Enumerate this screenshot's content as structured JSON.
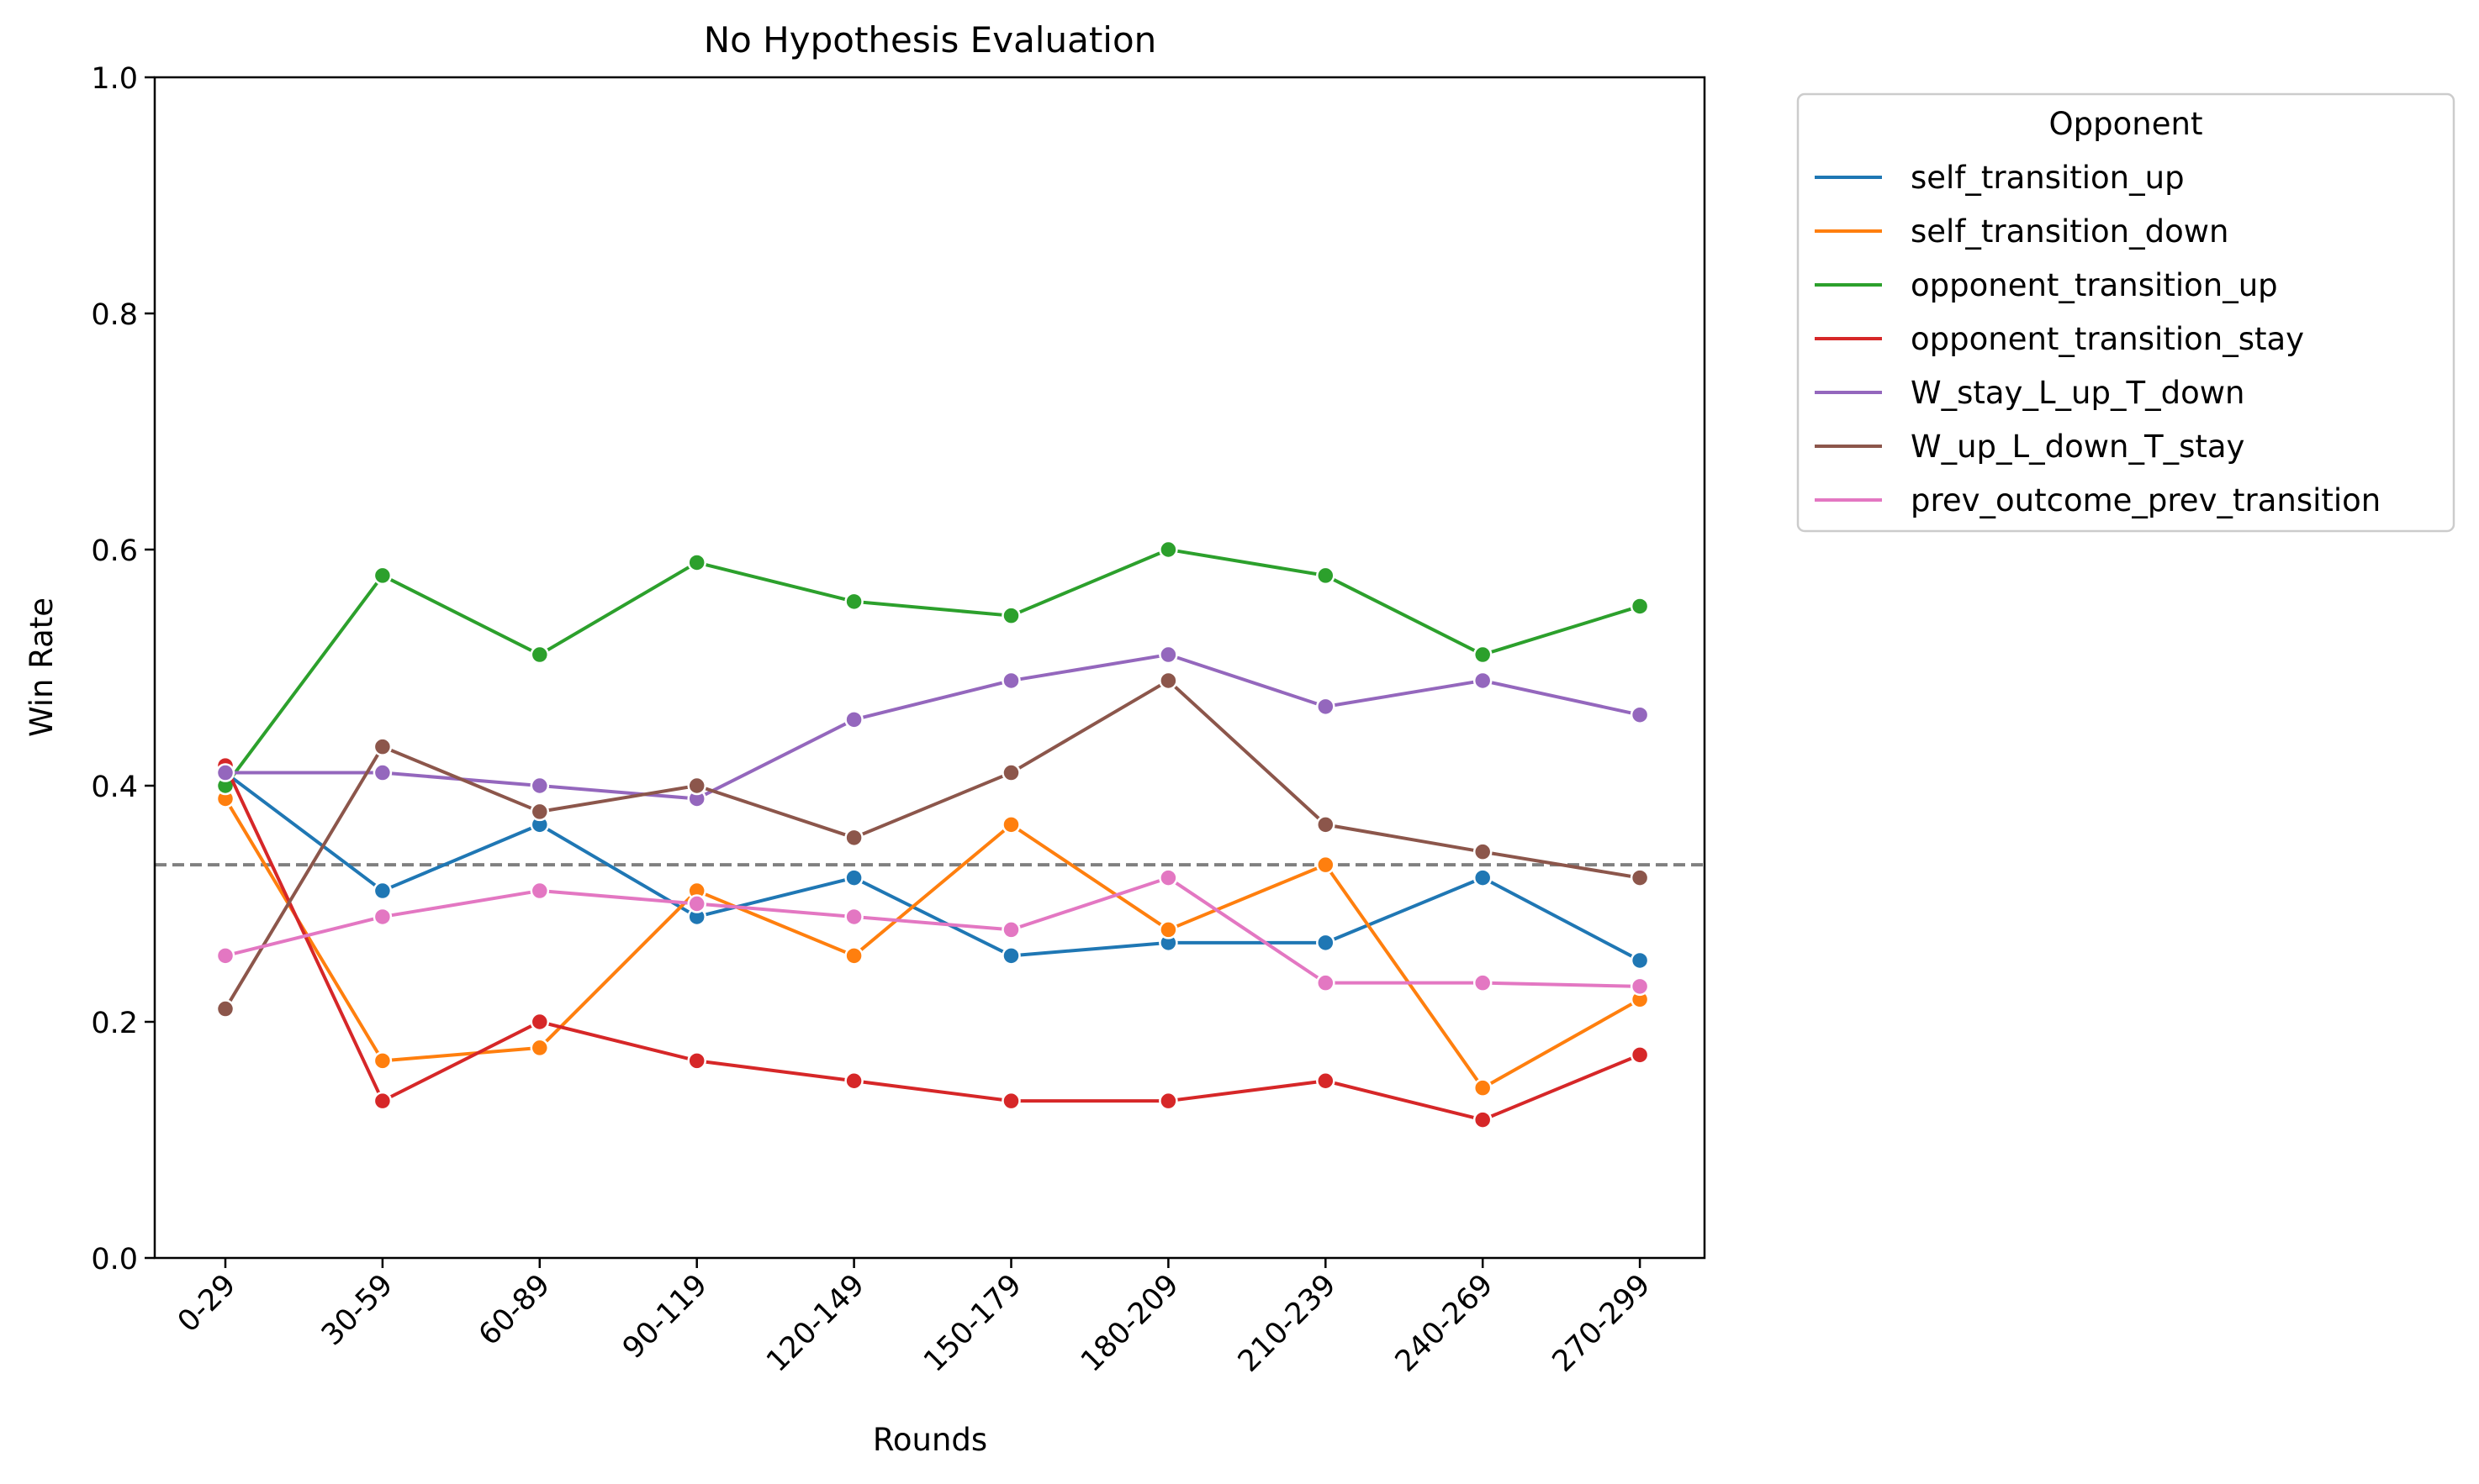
{
  "chart_data": {
    "type": "line",
    "title": "No Hypothesis Evaluation",
    "xlabel": "Rounds",
    "ylabel": "Win Rate",
    "ylim": [
      0,
      1.0
    ],
    "yticks": [
      "0.0",
      "0.2",
      "0.4",
      "0.6",
      "0.8",
      "1.0"
    ],
    "categories": [
      "0-29",
      "30-59",
      "60-89",
      "90-119",
      "120-149",
      "150-179",
      "180-209",
      "210-239",
      "240-269",
      "270-299"
    ],
    "reference_line": {
      "y": 0.333,
      "style": "dashed",
      "color": "#808080"
    },
    "legend": {
      "title": "Opponent",
      "placement": "outside-top-right"
    },
    "grid": false,
    "series": [
      {
        "name": "self_transition_up",
        "color": "#1f77b4",
        "values": [
          0.411,
          0.311,
          0.367,
          0.289,
          0.322,
          0.256,
          0.267,
          0.267,
          0.322,
          0.252
        ]
      },
      {
        "name": "self_transition_down",
        "color": "#ff7f0e",
        "values": [
          0.389,
          0.167,
          0.178,
          0.311,
          0.256,
          0.367,
          0.278,
          0.333,
          0.144,
          0.219
        ]
      },
      {
        "name": "opponent_transition_up",
        "color": "#2ca02c",
        "values": [
          0.4,
          0.578,
          0.511,
          0.589,
          0.556,
          0.544,
          0.6,
          0.578,
          0.511,
          0.552
        ]
      },
      {
        "name": "opponent_transition_stay",
        "color": "#d62728",
        "values": [
          0.417,
          0.133,
          0.2,
          0.167,
          0.15,
          0.133,
          0.133,
          0.15,
          0.117,
          0.172
        ]
      },
      {
        "name": "W_stay_L_up_T_down",
        "color": "#9467bd",
        "values": [
          0.411,
          0.411,
          0.4,
          0.389,
          0.456,
          0.489,
          0.511,
          0.467,
          0.489,
          0.46
        ]
      },
      {
        "name": "W_up_L_down_T_stay",
        "color": "#8c564b",
        "values": [
          0.211,
          0.433,
          0.378,
          0.4,
          0.356,
          0.411,
          0.489,
          0.367,
          0.344,
          0.322
        ]
      },
      {
        "name": "prev_outcome_prev_transition",
        "color": "#e377c2",
        "values": [
          0.256,
          0.289,
          0.311,
          0.3,
          0.289,
          0.278,
          0.322,
          0.233,
          0.233,
          0.23
        ]
      }
    ]
  }
}
